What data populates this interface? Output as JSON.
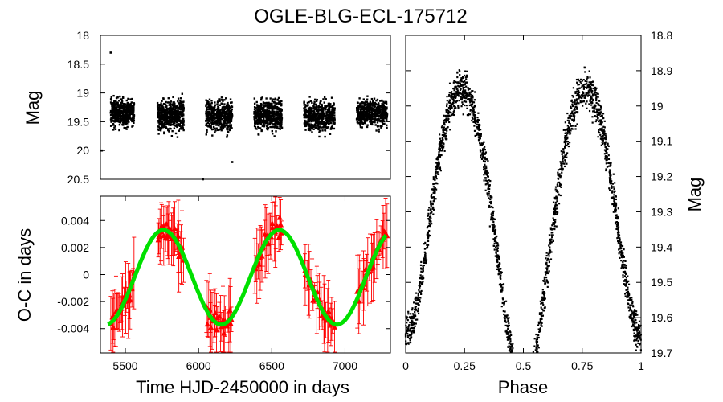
{
  "title": "OGLE-BLG-ECL-175712",
  "chart_data": [
    {
      "id": "light-curve",
      "type": "scatter",
      "ylabel": "Mag",
      "ylim": [
        20.5,
        18.0
      ],
      "y_inverted": true,
      "xlim": [
        5330,
        7310
      ],
      "yticks": [
        "18",
        "18.5",
        "19",
        "19.5",
        "20",
        "20.5"
      ],
      "seasons": [
        {
          "x": [
            5400,
            5560
          ],
          "y": [
            19.0,
            19.7
          ]
        },
        {
          "x": [
            5720,
            5900
          ],
          "y": [
            19.0,
            19.8
          ]
        },
        {
          "x": [
            6050,
            6230
          ],
          "y": [
            19.0,
            19.8
          ]
        },
        {
          "x": [
            6380,
            6570
          ],
          "y": [
            19.0,
            19.8
          ]
        },
        {
          "x": [
            6720,
            6930
          ],
          "y": [
            19.0,
            19.8
          ]
        },
        {
          "x": [
            7080,
            7290
          ],
          "y": [
            19.0,
            19.7
          ]
        }
      ],
      "outliers": [
        {
          "x": 5400,
          "y": 18.3
        },
        {
          "x": 5340,
          "y": 20.0
        },
        {
          "x": 6030,
          "y": 20.5
        },
        {
          "x": 6230,
          "y": 20.2
        }
      ],
      "color": "#000000"
    },
    {
      "id": "o-c",
      "type": "scatter",
      "xlabel": "Time HJD-2450000 in days",
      "ylabel": "O-C in days",
      "xlim": [
        5330,
        7310
      ],
      "ylim": [
        -0.0058,
        0.0058
      ],
      "xticks": [
        "5500",
        "6000",
        "6500",
        "7000"
      ],
      "yticks": [
        "0.004",
        "0.002",
        "0",
        "-0.002",
        "-0.004"
      ],
      "fit": {
        "color": "#00e000",
        "offset": -0.0002,
        "amplitude": 0.0035,
        "period": 790,
        "peak_at": 5760,
        "x_range": [
          5380,
          7280
        ]
      },
      "points_color": "#ff0000"
    },
    {
      "id": "phased",
      "type": "scatter",
      "xlabel": "Phase",
      "ylabel": "Mag",
      "xlim": [
        0,
        1
      ],
      "ylim": [
        19.7,
        18.8
      ],
      "xticks": [
        "0",
        "0.25",
        "0.5",
        "0.75",
        "1"
      ],
      "yticks": [
        "18.8",
        "18.9",
        "19",
        "19.1",
        "19.2",
        "19.3",
        "19.4",
        "19.5",
        "19.6",
        "19.7"
      ],
      "primary_minimum_phase": 0.5,
      "secondary_minimum_phase": 0.0,
      "max_mag": 18.85,
      "color": "#000000"
    }
  ]
}
